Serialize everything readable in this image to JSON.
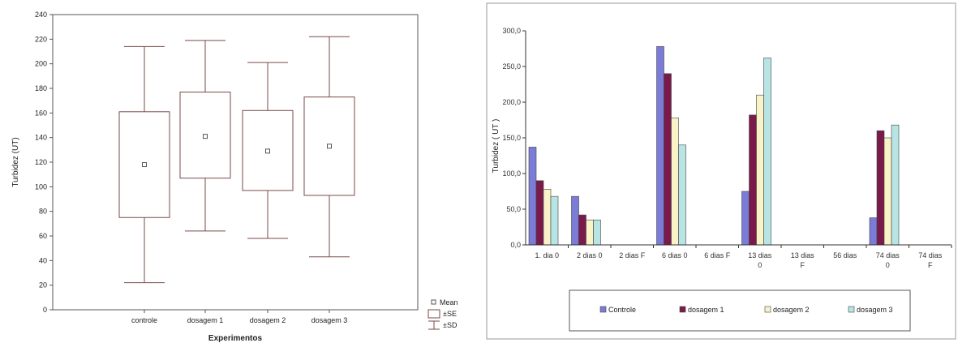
{
  "chart_data": [
    {
      "type": "box",
      "xlabel": "Experimentos",
      "ylabel": "Turbidez (UT)",
      "ylim": [
        0,
        240
      ],
      "yticks": [
        0,
        20,
        40,
        60,
        80,
        100,
        120,
        140,
        160,
        180,
        200,
        220,
        240
      ],
      "categories": [
        "controle",
        "dosagem 1",
        "dosagem 2",
        "dosagem 3"
      ],
      "boxes": [
        {
          "mean": 118,
          "se_low": 75,
          "se_high": 161,
          "sd_low": 22,
          "sd_high": 214
        },
        {
          "mean": 141,
          "se_low": 107,
          "se_high": 177,
          "sd_low": 64,
          "sd_high": 219
        },
        {
          "mean": 129,
          "se_low": 97,
          "se_high": 162,
          "sd_low": 58,
          "sd_high": 201
        },
        {
          "mean": 133,
          "se_low": 93,
          "se_high": 173,
          "sd_low": 43,
          "sd_high": 222
        }
      ],
      "legend": {
        "placement": "bottom-right",
        "items": [
          "Mean",
          "±SE",
          "±SD"
        ]
      }
    },
    {
      "type": "bar",
      "ylabel": "Turbidez ( UT )",
      "ylim": [
        0,
        300
      ],
      "yticks": [
        "0,0",
        "50,0",
        "100,0",
        "150,0",
        "200,0",
        "250,0",
        "300,0"
      ],
      "categories": [
        "1. dia 0",
        "2 dias 0",
        "2 dias F",
        "6 dias 0",
        "6 dias F",
        "13 dias 0",
        "13 dias F",
        "56 dias",
        "74 dias 0",
        "74 dias F"
      ],
      "category_labels": [
        [
          "1. dia 0"
        ],
        [
          "2 dias 0"
        ],
        [
          "2 dias F"
        ],
        [
          "6 dias 0"
        ],
        [
          "6 dias F"
        ],
        [
          "13 dias",
          "0"
        ],
        [
          "13 dias",
          "F"
        ],
        [
          "56 dias"
        ],
        [
          "74 dias",
          "0"
        ],
        [
          "74 dias",
          "F"
        ]
      ],
      "series": [
        {
          "name": "Controle",
          "color": "#7b7bd8",
          "values": [
            137,
            68,
            null,
            278,
            null,
            75,
            null,
            null,
            38,
            null
          ]
        },
        {
          "name": "dosagem 1",
          "color": "#7a1a4a",
          "values": [
            90,
            42,
            null,
            240,
            null,
            182,
            null,
            null,
            160,
            null
          ]
        },
        {
          "name": "dosagem 2",
          "color": "#fbf3c8",
          "values": [
            78,
            35,
            null,
            178,
            null,
            210,
            null,
            null,
            150,
            null
          ]
        },
        {
          "name": "dosagem 3",
          "color": "#b8e4e4",
          "values": [
            68,
            35,
            null,
            140,
            null,
            262,
            null,
            null,
            168,
            null
          ]
        }
      ],
      "legend": {
        "placement": "bottom"
      }
    }
  ]
}
